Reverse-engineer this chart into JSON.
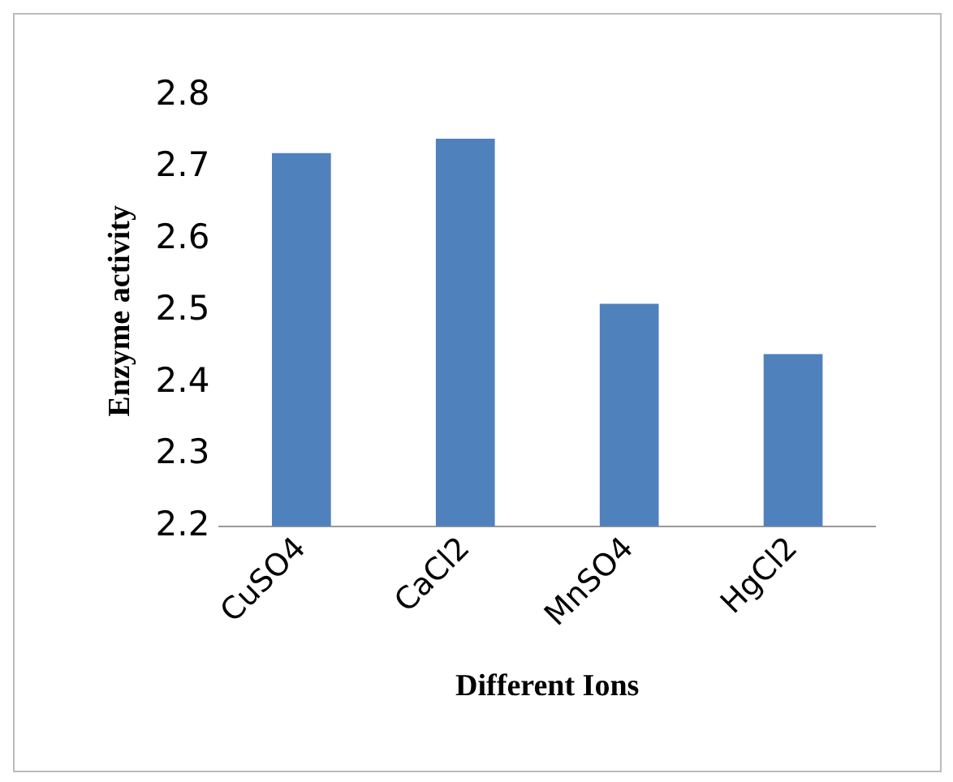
{
  "chart_data": {
    "type": "bar",
    "xlabel": "Different Ions",
    "ylabel": "Enzyme activity",
    "categories": [
      "CuSO4",
      "CaCl2",
      "MnSO4",
      "HgCl2"
    ],
    "values": [
      2.72,
      2.74,
      2.51,
      2.44
    ],
    "color": "#4f81bd",
    "ylim": [
      2.2,
      2.8
    ],
    "yticks": [
      2.2,
      2.3,
      2.4,
      2.5,
      2.6,
      2.7,
      2.8
    ],
    "grid": false,
    "legend": false
  }
}
